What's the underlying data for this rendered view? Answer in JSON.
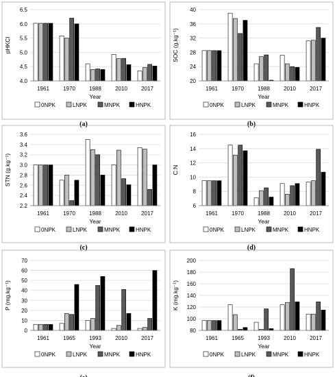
{
  "legend_labels": [
    "0NPK",
    "LNPK",
    "MNPK",
    "HNPK"
  ],
  "series_colors": [
    "#ffffff",
    "#bfbfbf",
    "#595959",
    "#000000"
  ],
  "chart_data": [
    {
      "type": "bar",
      "panel": "(a)",
      "categories": [
        "1961",
        "1970",
        "1988",
        "2010",
        "2017"
      ],
      "series": [
        {
          "name": "0NPK",
          "values": [
            6.02,
            5.58,
            4.6,
            4.93,
            4.35
          ]
        },
        {
          "name": "LNPK",
          "values": [
            6.02,
            5.5,
            4.4,
            4.78,
            4.47
          ]
        },
        {
          "name": "MNPK",
          "values": [
            6.02,
            6.2,
            4.42,
            4.79,
            4.58
          ]
        },
        {
          "name": "HNPK",
          "values": [
            6.02,
            6.0,
            4.4,
            4.57,
            4.52
          ]
        }
      ],
      "xlabel": "Year",
      "ylabel": "pHKCl",
      "ylim": [
        4.0,
        6.5
      ],
      "yticks": [
        "4.0",
        "4.5",
        "5.0",
        "5.5",
        "6.0",
        "6.5"
      ],
      "grid": true,
      "legend": "bottom"
    },
    {
      "type": "bar",
      "panel": "(b)",
      "categories": [
        "1961",
        "1970",
        "1988",
        "2010",
        "2017"
      ],
      "series": [
        {
          "name": "0NPK",
          "values": [
            28.5,
            39.0,
            24.8,
            27.2,
            31.2
          ]
        },
        {
          "name": "LNPK",
          "values": [
            28.5,
            37.5,
            26.8,
            24.8,
            31.4
          ]
        },
        {
          "name": "MNPK",
          "values": [
            28.5,
            33.3,
            27.3,
            24.0,
            35.0
          ]
        },
        {
          "name": "HNPK",
          "values": [
            28.5,
            37.0,
            20.2,
            23.8,
            32.0
          ]
        }
      ],
      "xlabel": "Year",
      "ylabel": "SOC (g.kg⁻¹)",
      "ylim": [
        20,
        40
      ],
      "yticks": [
        "20",
        "24",
        "28",
        "32",
        "36",
        "40"
      ],
      "grid": true,
      "legend": "bottom"
    },
    {
      "type": "bar",
      "panel": "(c)",
      "categories": [
        "1961",
        "1970",
        "1988",
        "2010",
        "2017"
      ],
      "series": [
        {
          "name": "0NPK",
          "values": [
            3.0,
            2.7,
            3.5,
            3.0,
            3.34
          ]
        },
        {
          "name": "LNPK",
          "values": [
            3.0,
            2.8,
            3.3,
            3.29,
            3.31
          ]
        },
        {
          "name": "MNPK",
          "values": [
            3.0,
            2.3,
            3.2,
            2.73,
            2.52
          ]
        },
        {
          "name": "HNPK",
          "values": [
            3.0,
            2.7,
            2.8,
            2.61,
            3.0
          ]
        }
      ],
      "xlabel": "Year",
      "ylabel": "STN (g.kg⁻¹)",
      "ylim": [
        2.2,
        3.6
      ],
      "yticks": [
        "2.2",
        "2.4",
        "2.6",
        "2.8",
        "3.0",
        "3.2",
        "3.4",
        "3.6"
      ],
      "grid": true,
      "legend": "bottom"
    },
    {
      "type": "bar",
      "panel": "(d)",
      "categories": [
        "1961",
        "1970",
        "1988",
        "2010",
        "2017"
      ],
      "series": [
        {
          "name": "0NPK",
          "values": [
            9.5,
            14.5,
            7.1,
            9.1,
            9.3
          ]
        },
        {
          "name": "LNPK",
          "values": [
            9.5,
            13.1,
            8.1,
            7.6,
            9.5
          ]
        },
        {
          "name": "MNPK",
          "values": [
            9.5,
            14.5,
            8.5,
            8.8,
            13.9
          ]
        },
        {
          "name": "HNPK",
          "values": [
            9.5,
            13.7,
            7.2,
            9.1,
            10.7
          ]
        }
      ],
      "xlabel": "Year",
      "ylabel": "C:N",
      "ylim": [
        6,
        16
      ],
      "yticks": [
        "6",
        "8",
        "10",
        "12",
        "14",
        "16"
      ],
      "grid": true,
      "legend": "bottom"
    },
    {
      "type": "bar",
      "panel": "(e)",
      "categories": [
        "1961",
        "1965",
        "1993",
        "2010",
        "2017"
      ],
      "series": [
        {
          "name": "0NPK",
          "values": [
            6,
            7,
            10,
            2,
            2
          ]
        },
        {
          "name": "LNPK",
          "values": [
            6,
            17,
            12,
            5,
            3
          ]
        },
        {
          "name": "MNPK",
          "values": [
            6,
            16,
            45,
            41,
            12
          ]
        },
        {
          "name": "HNPK",
          "values": [
            6,
            46,
            54,
            17,
            60
          ]
        }
      ],
      "xlabel": "Year",
      "ylabel": "P (mg.kg⁻¹)",
      "ylim": [
        0,
        70
      ],
      "yticks": [
        "0",
        "10",
        "20",
        "30",
        "40",
        "50",
        "60",
        "70"
      ],
      "grid": true,
      "legend": "bottom"
    },
    {
      "type": "bar",
      "panel": "(f)",
      "categories": [
        "1961",
        "1965",
        "1993",
        "2010",
        "2017"
      ],
      "series": [
        {
          "name": "0NPK",
          "values": [
            97,
            124,
            94,
            124,
            108
          ]
        },
        {
          "name": "LNPK",
          "values": [
            97,
            107,
            82,
            128,
            108
          ]
        },
        {
          "name": "MNPK",
          "values": [
            97,
            82,
            117,
            186,
            129
          ]
        },
        {
          "name": "HNPK",
          "values": [
            97,
            85,
            83,
            129,
            115
          ]
        }
      ],
      "xlabel": "Year",
      "ylabel": "K (mg.kg⁻¹)",
      "ylim": [
        80,
        200
      ],
      "yticks": [
        "80",
        "100",
        "120",
        "140",
        "160",
        "180",
        "200"
      ],
      "grid": true,
      "legend": "bottom"
    }
  ]
}
